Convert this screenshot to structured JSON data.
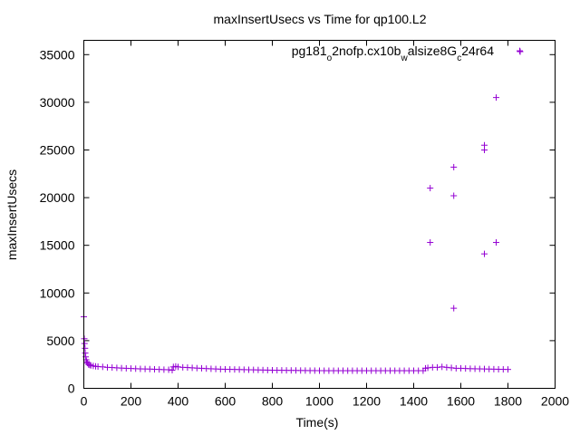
{
  "chart_data": {
    "type": "scatter",
    "title": "maxInsertUsecs vs Time for qp100.L2",
    "xlabel": "Time(s)",
    "ylabel": "maxInsertUsecs",
    "xlim": [
      0,
      2000
    ],
    "ylim": [
      0,
      36500
    ],
    "xticks": [
      "0",
      "200",
      "400",
      "600",
      "800",
      "1000",
      "1200",
      "1400",
      "1600",
      "1800",
      "2000"
    ],
    "yticks": [
      "0",
      "5000",
      "10000",
      "15000",
      "20000",
      "25000",
      "30000",
      "35000"
    ],
    "grid": false,
    "legend_position": "top-right",
    "marker": "plus",
    "series": [
      {
        "name_parts": {
          "p1": "pg181",
          "sub1": "o",
          "p2": "2nofp.cx10b",
          "sub2": "w",
          "p3": "alsize8G",
          "sub3": "c",
          "p4": "24r64"
        },
        "color": "#9400d3",
        "points": [
          [
            0,
            7500
          ],
          [
            2,
            5200
          ],
          [
            3,
            4700
          ],
          [
            5,
            4200
          ],
          [
            6,
            3700
          ],
          [
            8,
            3300
          ],
          [
            10,
            3000
          ],
          [
            12,
            2800
          ],
          [
            15,
            2650
          ],
          [
            20,
            2500
          ],
          [
            25,
            2450
          ],
          [
            30,
            2400
          ],
          [
            40,
            2350
          ],
          [
            50,
            2300
          ],
          [
            60,
            2280
          ],
          [
            80,
            2250
          ],
          [
            100,
            2200
          ],
          [
            120,
            2180
          ],
          [
            140,
            2150
          ],
          [
            160,
            2120
          ],
          [
            180,
            2100
          ],
          [
            200,
            2080
          ],
          [
            220,
            2060
          ],
          [
            240,
            2040
          ],
          [
            260,
            2030
          ],
          [
            280,
            2020
          ],
          [
            300,
            2000
          ],
          [
            320,
            1980
          ],
          [
            340,
            1960
          ],
          [
            360,
            1950
          ],
          [
            375,
            1900
          ],
          [
            380,
            2250
          ],
          [
            390,
            2300
          ],
          [
            400,
            2250
          ],
          [
            420,
            2200
          ],
          [
            440,
            2180
          ],
          [
            460,
            2150
          ],
          [
            480,
            2120
          ],
          [
            500,
            2100
          ],
          [
            520,
            2070
          ],
          [
            540,
            2050
          ],
          [
            560,
            2030
          ],
          [
            580,
            2010
          ],
          [
            600,
            2000
          ],
          [
            620,
            1990
          ],
          [
            640,
            1980
          ],
          [
            660,
            1970
          ],
          [
            680,
            1960
          ],
          [
            700,
            1950
          ],
          [
            720,
            1940
          ],
          [
            740,
            1930
          ],
          [
            760,
            1920
          ],
          [
            780,
            1910
          ],
          [
            800,
            1900
          ],
          [
            820,
            1895
          ],
          [
            840,
            1890
          ],
          [
            860,
            1885
          ],
          [
            880,
            1880
          ],
          [
            900,
            1875
          ],
          [
            920,
            1870
          ],
          [
            940,
            1865
          ],
          [
            960,
            1860
          ],
          [
            980,
            1858
          ],
          [
            1000,
            1855
          ],
          [
            1020,
            1852
          ],
          [
            1040,
            1850
          ],
          [
            1060,
            1850
          ],
          [
            1080,
            1850
          ],
          [
            1100,
            1850
          ],
          [
            1120,
            1850
          ],
          [
            1140,
            1850
          ],
          [
            1160,
            1850
          ],
          [
            1180,
            1850
          ],
          [
            1200,
            1850
          ],
          [
            1220,
            1850
          ],
          [
            1240,
            1850
          ],
          [
            1260,
            1850
          ],
          [
            1280,
            1850
          ],
          [
            1300,
            1850
          ],
          [
            1320,
            1850
          ],
          [
            1340,
            1850
          ],
          [
            1360,
            1850
          ],
          [
            1380,
            1850
          ],
          [
            1400,
            1850
          ],
          [
            1420,
            1850
          ],
          [
            1440,
            1850
          ],
          [
            1450,
            2100
          ],
          [
            1460,
            2150
          ],
          [
            1480,
            2200
          ],
          [
            1500,
            2200
          ],
          [
            1520,
            2250
          ],
          [
            1540,
            2200
          ],
          [
            1560,
            2150
          ],
          [
            1580,
            2100
          ],
          [
            1600,
            2100
          ],
          [
            1620,
            2080
          ],
          [
            1640,
            2060
          ],
          [
            1660,
            2050
          ],
          [
            1680,
            2040
          ],
          [
            1700,
            2030
          ],
          [
            1720,
            2020
          ],
          [
            1740,
            2010
          ],
          [
            1760,
            2000
          ],
          [
            1780,
            1990
          ],
          [
            1800,
            1980
          ],
          [
            1470,
            21000
          ],
          [
            1470,
            15300
          ],
          [
            1570,
            23200
          ],
          [
            1570,
            20200
          ],
          [
            1570,
            8400
          ],
          [
            1700,
            25500
          ],
          [
            1700,
            25000
          ],
          [
            1700,
            14100
          ],
          [
            1750,
            30500
          ],
          [
            1750,
            15300
          ],
          [
            1850,
            35400
          ]
        ]
      }
    ]
  }
}
